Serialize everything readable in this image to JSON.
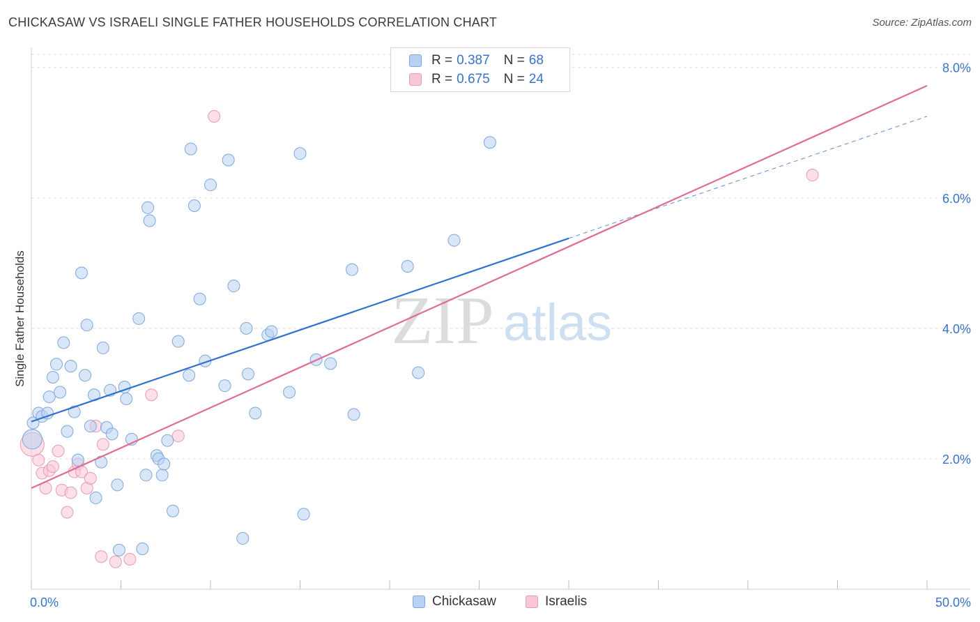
{
  "header": {
    "title": "CHICKASAW VS ISRAELI SINGLE FATHER HOUSEHOLDS CORRELATION CHART",
    "source": "Source: ZipAtlas.com"
  },
  "legend": {
    "r_label": "R =",
    "n_label": "N =",
    "blue_r": "0.387",
    "blue_n": "68",
    "pink_r": "0.675",
    "pink_n": "24"
  },
  "bottom_legend": {
    "blue": "Chickasaw",
    "pink": "Israelis"
  },
  "watermark": {
    "zip": "ZIP",
    "atlas": "atlas"
  },
  "colors": {
    "blue_fill": "#b8d1f2",
    "blue_stroke": "#7fa7dc",
    "blue_line": "#2f6fce",
    "pink_fill": "#f9c6d5",
    "pink_stroke": "#ea9ab3",
    "pink_line": "#e06b93",
    "tick_text": "#3773c9",
    "grid": "#dedede"
  },
  "chart_data": {
    "type": "scatter",
    "title": "CHICKASAW VS ISRAELI SINGLE FATHER HOUSEHOLDS CORRELATION CHART",
    "xlabel": "",
    "ylabel": "Single Father Households",
    "xlim": [
      0,
      50
    ],
    "ylim": [
      0,
      8.2
    ],
    "x_tick_labels": [
      {
        "value": 0,
        "label": "0.0%"
      },
      {
        "value": 50,
        "label": "50.0%"
      }
    ],
    "y_tick_labels": [
      {
        "value": 2,
        "label": "2.0%"
      },
      {
        "value": 4,
        "label": "4.0%"
      },
      {
        "value": 6,
        "label": "6.0%"
      },
      {
        "value": 8,
        "label": "8.0%"
      }
    ],
    "series": [
      {
        "name": "Chickasaw",
        "r": 0.387,
        "n": 68,
        "trend": {
          "x0": 0,
          "y0": 2.57,
          "x1": 30,
          "y1": 5.38,
          "dash_to_x": 50,
          "dash_to_y": 7.25
        },
        "points": [
          [
            0.1,
            2.55
          ],
          [
            0.4,
            2.7
          ],
          [
            0.6,
            2.65
          ],
          [
            0.9,
            2.7
          ],
          [
            1.0,
            2.95
          ],
          [
            1.2,
            3.25
          ],
          [
            1.4,
            3.45
          ],
          [
            1.6,
            3.02
          ],
          [
            1.8,
            3.78
          ],
          [
            2.0,
            2.42
          ],
          [
            2.2,
            3.42
          ],
          [
            2.4,
            2.72
          ],
          [
            2.6,
            1.98
          ],
          [
            2.8,
            4.85
          ],
          [
            3.0,
            3.28
          ],
          [
            3.1,
            4.05
          ],
          [
            3.3,
            2.5
          ],
          [
            3.5,
            2.98
          ],
          [
            3.6,
            1.4
          ],
          [
            3.9,
            1.95
          ],
          [
            4.0,
            3.7
          ],
          [
            4.2,
            2.48
          ],
          [
            4.4,
            3.05
          ],
          [
            4.5,
            2.38
          ],
          [
            4.8,
            1.6
          ],
          [
            4.9,
            0.6
          ],
          [
            5.2,
            3.1
          ],
          [
            5.3,
            2.92
          ],
          [
            5.6,
            2.3
          ],
          [
            6.0,
            4.15
          ],
          [
            6.2,
            0.62
          ],
          [
            6.4,
            1.75
          ],
          [
            6.5,
            5.85
          ],
          [
            6.6,
            5.65
          ],
          [
            7.0,
            2.05
          ],
          [
            7.1,
            2.0
          ],
          [
            7.3,
            1.75
          ],
          [
            7.4,
            1.92
          ],
          [
            7.6,
            2.28
          ],
          [
            7.9,
            1.2
          ],
          [
            8.2,
            3.8
          ],
          [
            8.8,
            3.28
          ],
          [
            8.9,
            6.75
          ],
          [
            9.1,
            5.88
          ],
          [
            9.4,
            4.45
          ],
          [
            9.7,
            3.5
          ],
          [
            10.0,
            6.2
          ],
          [
            10.8,
            3.12
          ],
          [
            11.0,
            6.58
          ],
          [
            11.3,
            4.65
          ],
          [
            11.8,
            0.78
          ],
          [
            12.0,
            4.0
          ],
          [
            12.1,
            3.3
          ],
          [
            12.5,
            2.7
          ],
          [
            13.2,
            3.9
          ],
          [
            13.4,
            3.95
          ],
          [
            14.4,
            3.02
          ],
          [
            15.0,
            6.68
          ],
          [
            15.2,
            1.15
          ],
          [
            15.9,
            3.52
          ],
          [
            16.7,
            3.46
          ],
          [
            17.9,
            4.9
          ],
          [
            18.0,
            2.68
          ],
          [
            21.0,
            4.95
          ],
          [
            21.6,
            3.32
          ],
          [
            23.6,
            5.35
          ],
          [
            25.6,
            6.85
          ],
          [
            0.05,
            2.3
          ]
        ]
      },
      {
        "name": "Israelis",
        "r": 0.675,
        "n": 24,
        "trend": {
          "x0": 0,
          "y0": 1.55,
          "x1": 50,
          "y1": 7.72
        },
        "points": [
          [
            0.05,
            2.22
          ],
          [
            0.4,
            1.98
          ],
          [
            0.6,
            1.78
          ],
          [
            0.8,
            1.55
          ],
          [
            1.0,
            1.82
          ],
          [
            1.2,
            1.88
          ],
          [
            1.5,
            2.12
          ],
          [
            1.7,
            1.52
          ],
          [
            2.0,
            1.18
          ],
          [
            2.2,
            1.48
          ],
          [
            2.4,
            1.8
          ],
          [
            2.6,
            1.92
          ],
          [
            2.8,
            1.8
          ],
          [
            3.1,
            1.55
          ],
          [
            3.3,
            1.7
          ],
          [
            3.6,
            2.5
          ],
          [
            3.9,
            0.5
          ],
          [
            4.0,
            2.22
          ],
          [
            4.7,
            0.42
          ],
          [
            5.5,
            0.46
          ],
          [
            6.7,
            2.98
          ],
          [
            8.2,
            2.35
          ],
          [
            10.2,
            7.25
          ],
          [
            43.6,
            6.35
          ]
        ]
      }
    ]
  }
}
